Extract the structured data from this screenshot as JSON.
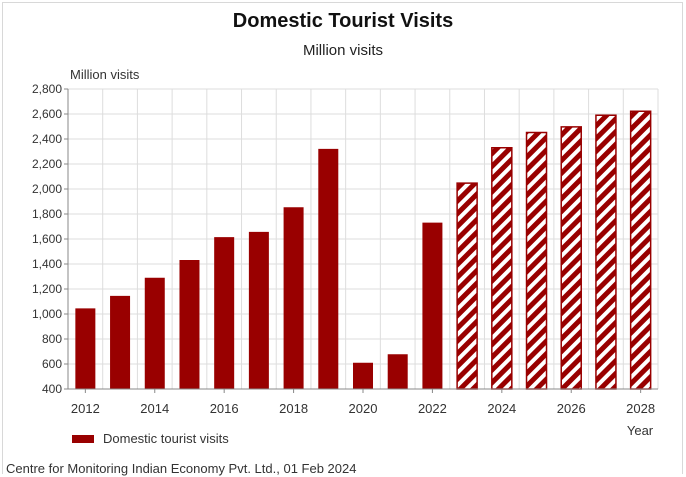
{
  "chart_data": {
    "type": "bar",
    "title": "Domestic Tourist Visits",
    "subtitle": "Million visits",
    "ylabel": "Million visits",
    "xlabel": "Year",
    "ylim": [
      400,
      2800
    ],
    "yticks": [
      400,
      600,
      800,
      1000,
      1200,
      1400,
      1600,
      1800,
      2000,
      2200,
      2400,
      2600,
      2800
    ],
    "ytick_labels": [
      "400",
      "600",
      "800",
      "1,000",
      "1,200",
      "1,400",
      "1,600",
      "1,800",
      "2,000",
      "2,200",
      "2,400",
      "2,600",
      "2,800"
    ],
    "xtick_labels": [
      "2012",
      "2014",
      "2016",
      "2018",
      "2020",
      "2022",
      "2024",
      "2026",
      "2028"
    ],
    "grid": true,
    "legend_position": "bottom-left",
    "series": [
      {
        "name": "Domestic tourist visits",
        "x": [
          2012,
          2013,
          2014,
          2015,
          2016,
          2017,
          2018,
          2019,
          2020,
          2021,
          2022,
          2023,
          2024,
          2025,
          2026,
          2027,
          2028
        ],
        "values": [
          1045,
          1145,
          1290,
          1432,
          1615,
          1657,
          1854,
          2321,
          610,
          678,
          1731,
          2047,
          2330,
          2452,
          2497,
          2590,
          2622
        ],
        "forecast": [
          false,
          false,
          false,
          false,
          false,
          false,
          false,
          false,
          false,
          false,
          false,
          true,
          true,
          true,
          true,
          true,
          true
        ]
      }
    ],
    "colors": {
      "bar": "#990000",
      "hatch_stripe": "#ffffff",
      "grid": "#dddddd",
      "axis": "#888888"
    }
  },
  "source": "Centre for Monitoring Indian Economy Pvt. Ltd., 01 Feb 2024"
}
